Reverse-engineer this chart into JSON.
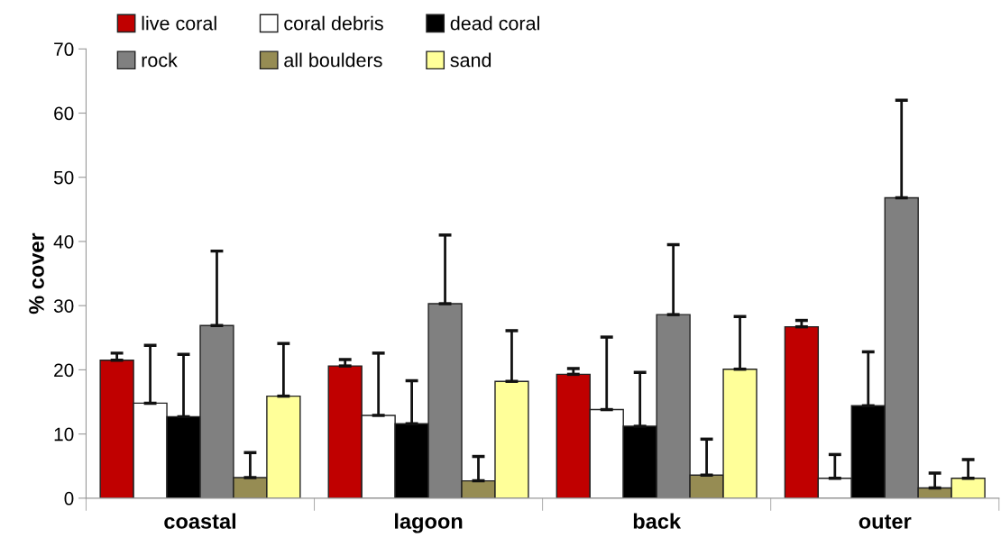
{
  "chart_data": {
    "type": "bar",
    "ylabel": "% cover",
    "categories": [
      "coastal",
      "lagoon",
      "back",
      "outer"
    ],
    "series": [
      {
        "name": "live coral",
        "color": "#c00000",
        "values": [
          21.5,
          20.6,
          19.3,
          26.7
        ],
        "errors": [
          [
            21.5,
            22.6
          ],
          [
            20.6,
            21.6
          ],
          [
            19.3,
            20.2
          ],
          [
            26.7,
            27.7
          ]
        ]
      },
      {
        "name": "coral debris",
        "color": "#ffffff",
        "values": [
          14.8,
          12.9,
          13.8,
          3.1
        ],
        "errors": [
          [
            14.8,
            23.8
          ],
          [
            12.9,
            22.6
          ],
          [
            13.8,
            25.1
          ],
          [
            3.1,
            6.8
          ]
        ]
      },
      {
        "name": "dead coral",
        "color": "#000000",
        "values": [
          12.7,
          11.6,
          11.2,
          14.4
        ],
        "errors": [
          [
            12.7,
            22.4
          ],
          [
            11.6,
            18.3
          ],
          [
            11.2,
            19.6
          ],
          [
            14.4,
            22.8
          ]
        ]
      },
      {
        "name": "rock",
        "color": "#808080",
        "values": [
          26.9,
          30.3,
          28.6,
          46.8
        ],
        "errors": [
          [
            26.9,
            38.5
          ],
          [
            30.3,
            41.0
          ],
          [
            28.6,
            39.5
          ],
          [
            46.8,
            62.0
          ]
        ]
      },
      {
        "name": "all boulders",
        "color": "#968c53",
        "values": [
          3.2,
          2.7,
          3.6,
          1.6
        ],
        "errors": [
          [
            3.2,
            7.1
          ],
          [
            2.7,
            6.5
          ],
          [
            3.6,
            9.2
          ],
          [
            1.6,
            3.9
          ]
        ]
      },
      {
        "name": "sand",
        "color": "#ffff99",
        "values": [
          15.9,
          18.2,
          20.1,
          3.1
        ],
        "errors": [
          [
            15.9,
            24.1
          ],
          [
            18.2,
            26.1
          ],
          [
            20.1,
            28.3
          ],
          [
            3.1,
            6.0
          ]
        ]
      }
    ],
    "ylim": [
      0,
      70
    ],
    "yticks": [
      0,
      10,
      20,
      30,
      40,
      50,
      60,
      70
    ],
    "grid": false,
    "legend": "top"
  }
}
